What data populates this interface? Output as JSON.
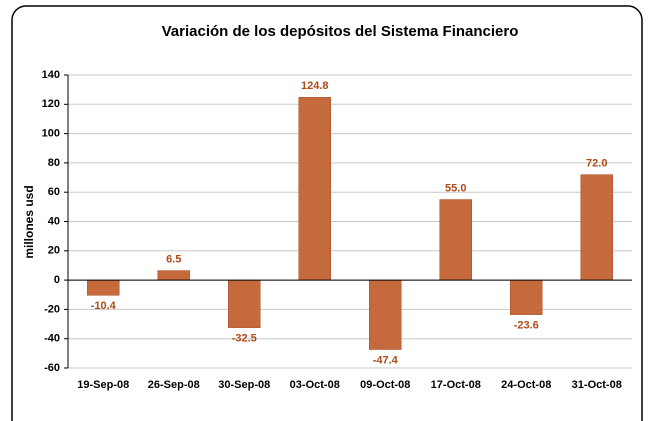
{
  "chart_data": {
    "type": "bar",
    "title": "Variación de los depósitos del Sistema Financiero",
    "y_label": "millones usd",
    "categories": [
      "19-Sep-08",
      "26-Sep-08",
      "30-Sep-08",
      "03-Oct-08",
      "09-Oct-08",
      "17-Oct-08",
      "24-Oct-08",
      "31-Oct-08"
    ],
    "values": [
      -10.4,
      6.5,
      -32.5,
      124.8,
      -47.4,
      55.0,
      -23.6,
      72.0
    ],
    "value_labels": [
      "-10.4",
      "6.5",
      "-32.5",
      "124.8",
      "-47.4",
      "55.0",
      "-23.6",
      "72.0"
    ],
    "color": "#c46a3c",
    "label_color": "#b04a18",
    "ylim": [
      -60,
      140
    ],
    "yticks": [
      -60,
      -40,
      -20,
      0,
      20,
      40,
      60,
      80,
      100,
      120,
      140
    ],
    "grid": true
  }
}
